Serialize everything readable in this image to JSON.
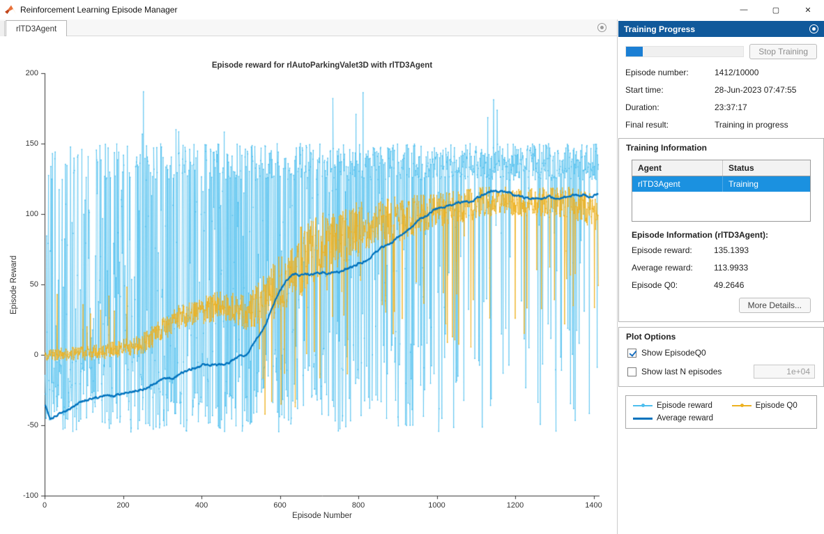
{
  "window": {
    "title": "Reinforcement Learning Episode Manager",
    "controls": {
      "minimize": "—",
      "maximize": "▢",
      "close": "✕"
    }
  },
  "left_pane": {
    "tab_label": "rlTD3Agent"
  },
  "chart_data": {
    "type": "line",
    "title": "Episode reward for rlAutoParkingValet3D with rlTD3Agent",
    "xlabel": "Episode Number",
    "ylabel": "Episode Reward",
    "xlim": [
      0,
      1415
    ],
    "ylim": [
      -100,
      200
    ],
    "xticks": [
      0,
      200,
      400,
      600,
      800,
      1000,
      1200,
      1400
    ],
    "yticks": [
      -100,
      -50,
      0,
      50,
      100,
      150,
      200
    ],
    "grid": false,
    "episodes": 1412,
    "series": [
      {
        "name": "Episode reward",
        "color": "#4DBEEE",
        "style": "thin-with-markers",
        "model": "noisy success/failure episodes",
        "success_value_range": [
          124,
          150
        ],
        "failure_value_range": [
          -55,
          10
        ],
        "rare_spike_range": [
          155,
          190
        ],
        "success_prob_keypoints": [
          [
            0,
            0.12
          ],
          [
            150,
            0.22
          ],
          [
            300,
            0.28
          ],
          [
            450,
            0.32
          ],
          [
            600,
            0.45
          ],
          [
            750,
            0.55
          ],
          [
            900,
            0.62
          ],
          [
            1000,
            0.72
          ],
          [
            1100,
            0.8
          ],
          [
            1250,
            0.82
          ],
          [
            1412,
            0.85
          ]
        ],
        "last_value": 135.1393
      },
      {
        "name": "Average reward",
        "color": "#0072BD",
        "style": "thick-smooth",
        "keypoints": [
          [
            0,
            -35
          ],
          [
            15,
            -45
          ],
          [
            100,
            -32
          ],
          [
            200,
            -27
          ],
          [
            300,
            -18
          ],
          [
            400,
            -8
          ],
          [
            470,
            -5
          ],
          [
            520,
            2
          ],
          [
            560,
            20
          ],
          [
            600,
            45
          ],
          [
            630,
            57
          ],
          [
            700,
            58
          ],
          [
            760,
            60
          ],
          [
            820,
            68
          ],
          [
            880,
            80
          ],
          [
            940,
            92
          ],
          [
            1000,
            104
          ],
          [
            1060,
            108
          ],
          [
            1100,
            112
          ],
          [
            1150,
            118
          ],
          [
            1200,
            113
          ],
          [
            1260,
            110
          ],
          [
            1320,
            112
          ],
          [
            1412,
            113.9933
          ]
        ],
        "last_value": 113.9933
      },
      {
        "name": "Episode Q0",
        "color": "#EDB120",
        "style": "thin-with-markers",
        "trend_keypoints": [
          [
            0,
            0
          ],
          [
            150,
            2
          ],
          [
            250,
            8
          ],
          [
            350,
            28
          ],
          [
            450,
            35
          ],
          [
            520,
            30
          ],
          [
            580,
            45
          ],
          [
            650,
            65
          ],
          [
            720,
            80
          ],
          [
            800,
            90
          ],
          [
            880,
            95
          ],
          [
            950,
            100
          ],
          [
            1050,
            105
          ],
          [
            1150,
            110
          ],
          [
            1250,
            108
          ],
          [
            1350,
            108
          ],
          [
            1412,
            100
          ]
        ],
        "noise_keypoints": [
          [
            0,
            4
          ],
          [
            200,
            6
          ],
          [
            350,
            9
          ],
          [
            500,
            11
          ],
          [
            650,
            25
          ],
          [
            800,
            20
          ],
          [
            1000,
            12
          ],
          [
            1200,
            10
          ],
          [
            1412,
            12
          ]
        ],
        "last_value": 49.2646
      }
    ],
    "legend_position": "outside-right-panel"
  },
  "right_pane": {
    "header": "Training Progress",
    "stop_button": "Stop Training",
    "progress": {
      "current": 1412,
      "total": 10000,
      "percent": 14.12
    },
    "fields": [
      {
        "label": "Episode number:",
        "value": "1412/10000"
      },
      {
        "label": "Start time:",
        "value": "28-Jun-2023 07:47:55"
      },
      {
        "label": "Duration:",
        "value": "23:37:17"
      },
      {
        "label": "Final result:",
        "value": "Training in progress"
      }
    ],
    "training_information": {
      "header": "Training Information",
      "table": {
        "columns": [
          "Agent",
          "Status"
        ],
        "rows": [
          {
            "agent": "rlTD3Agent",
            "status": "Training",
            "selected": true
          }
        ]
      },
      "episode_info_header": "Episode Information (rlTD3Agent):",
      "episode_fields": [
        {
          "label": "Episode reward:",
          "value": "135.1393"
        },
        {
          "label": "Average reward:",
          "value": "113.9933"
        },
        {
          "label": "Episode Q0:",
          "value": "49.2646"
        }
      ],
      "more_details_button": "More Details..."
    },
    "plot_options": {
      "header": "Plot Options",
      "items": [
        {
          "label": "Show EpisodeQ0",
          "checked": true
        },
        {
          "label": "Show last N episodes",
          "checked": false,
          "value": "1e+04"
        }
      ]
    },
    "legend": {
      "items": [
        {
          "label": "Episode reward",
          "color": "#4DBEEE",
          "thick": false
        },
        {
          "label": "Average reward",
          "color": "#0072BD",
          "thick": true
        },
        {
          "label": "Episode Q0",
          "color": "#EDB120",
          "thick": false
        }
      ]
    }
  }
}
